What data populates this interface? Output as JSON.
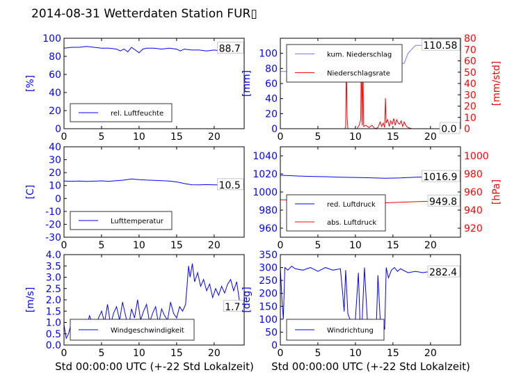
{
  "title": "2014-08-31 Wetterdaten Station FUR▯",
  "x_axis_label": "Std 00:00:00 UTC (+-22 Std Lokalzeit)",
  "colors": {
    "primary": "#0000ff",
    "primary_light": "#7777ff",
    "secondary": "#ff0000"
  },
  "chart_data": [
    {
      "type": "line",
      "ylabel": "[%]",
      "ylim": [
        0,
        100
      ],
      "yticks": [
        0,
        20,
        40,
        60,
        80,
        100
      ],
      "xlim": [
        0,
        24
      ],
      "xticks": [
        0,
        5,
        10,
        15,
        20
      ],
      "legend_loc": "lower-left",
      "last_value": "88.7",
      "series": [
        {
          "name": "rel. Luftfeuchte",
          "color": "#0000ff",
          "x": [
            0,
            1,
            2,
            3,
            4,
            5,
            6,
            7,
            7.5,
            8,
            8.5,
            9,
            9.5,
            10,
            10.5,
            11,
            12,
            13,
            14,
            15,
            15.5,
            16,
            17,
            18,
            19,
            20,
            21,
            22,
            23,
            24
          ],
          "y": [
            89,
            90,
            90,
            91,
            90,
            89,
            89,
            88,
            86,
            88,
            85,
            90,
            87,
            84,
            88,
            89,
            89,
            88,
            89,
            88,
            86,
            88,
            87,
            87,
            86,
            87,
            86,
            87,
            88,
            88.7
          ]
        }
      ]
    },
    {
      "type": "line",
      "ylabel": "[mm]",
      "ylabel_right": "[mm/std]",
      "ylim": [
        0,
        120
      ],
      "yticks": [
        0,
        20,
        40,
        60,
        80,
        100
      ],
      "ylim_right": [
        0,
        80
      ],
      "yticks_right": [
        0,
        10,
        20,
        30,
        40,
        50,
        60,
        70,
        80
      ],
      "xlim": [
        0,
        24
      ],
      "xticks": [
        0,
        5,
        10,
        15,
        20
      ],
      "legend_loc": "upper-left",
      "last_value": "110.58",
      "last_value_right": "0.0",
      "series": [
        {
          "name": "kum. Niederschlag",
          "color": "#7777ff",
          "axis": "left",
          "x": [
            0,
            8,
            8.8,
            9,
            10.8,
            11,
            13,
            14,
            15,
            16,
            16.5,
            17,
            18,
            24
          ],
          "y": [
            76,
            76,
            77,
            79,
            79,
            81,
            81,
            82,
            84,
            86,
            87,
            100,
            110.58,
            110.58
          ]
        },
        {
          "name": "Niederschlagsrate",
          "color": "#ff0000",
          "axis": "right",
          "x": [
            0,
            8.6,
            8.7,
            8.8,
            8.9,
            9.0,
            9.1,
            9.5,
            10.2,
            10.5,
            10.7,
            10.8,
            10.9,
            11.0,
            11.1,
            11.4,
            11.8,
            12.2,
            12.6,
            13.0,
            13.3,
            13.5,
            13.7,
            13.9,
            14.0,
            14.1,
            14.3,
            14.5,
            14.7,
            14.9,
            15.1,
            15.3,
            15.5,
            15.7,
            15.9,
            16.1,
            16.3,
            16.5,
            16.7,
            17.0,
            17.5,
            24
          ],
          "y": [
            0,
            0,
            2,
            59,
            10,
            0,
            0,
            0,
            0,
            3,
            8,
            65,
            3,
            56,
            2,
            3,
            1,
            3,
            0,
            1,
            6,
            2,
            5,
            1,
            27,
            5,
            8,
            2,
            7,
            4,
            9,
            3,
            8,
            5,
            4,
            7,
            2,
            6,
            3,
            1,
            0,
            0
          ]
        }
      ]
    },
    {
      "type": "line",
      "ylabel": "[C]",
      "ylim": [
        -30,
        40
      ],
      "yticks": [
        -30,
        -20,
        -10,
        0,
        10,
        20,
        30,
        40
      ],
      "xlim": [
        0,
        24
      ],
      "xticks": [
        0,
        5,
        10,
        15,
        20
      ],
      "legend_loc": "lower-left",
      "last_value": "10.5",
      "series": [
        {
          "name": "Lufttemperatur",
          "color": "#0000ff",
          "x": [
            0,
            1,
            2,
            3,
            4,
            5,
            6,
            7,
            8,
            9,
            10,
            11,
            12,
            13,
            14,
            15,
            16,
            17,
            18,
            19,
            20,
            21,
            22,
            23,
            24
          ],
          "y": [
            13.5,
            13.3,
            13.5,
            13.2,
            13.4,
            13.6,
            13.3,
            13.7,
            14.2,
            15.1,
            14.6,
            14.2,
            14.0,
            13.8,
            13.5,
            12.8,
            11.6,
            10.6,
            10.5,
            10.7,
            10.5,
            10.6,
            10.5,
            10.4,
            10.5
          ]
        }
      ]
    },
    {
      "type": "line",
      "ylabel_right": "[hPa]",
      "ylim": [
        950,
        1050
      ],
      "yticks": [
        960,
        980,
        1000,
        1020,
        1040
      ],
      "ylim_right": [
        910,
        1010
      ],
      "yticks_right": [
        920,
        940,
        960,
        980,
        1000
      ],
      "xlim": [
        0,
        24
      ],
      "xticks": [
        0,
        5,
        10,
        15,
        20
      ],
      "legend_loc": "lower-left",
      "last_value": "1016.9",
      "last_value_right": "949.8",
      "series": [
        {
          "name": "red. Luftdruck",
          "color": "#0000ff",
          "axis": "left",
          "x": [
            0,
            2,
            4,
            6,
            8,
            10,
            12,
            14,
            16,
            18,
            20,
            22,
            24
          ],
          "y": [
            1018.5,
            1017.8,
            1017.2,
            1016.9,
            1016.4,
            1016.1,
            1015.7,
            1015.2,
            1015.6,
            1016.4,
            1016.8,
            1016.9,
            1016.9
          ]
        },
        {
          "name": "abs. Luftdruck",
          "color": "#ff0000",
          "axis": "right",
          "x": [
            0,
            2,
            4,
            6,
            8,
            10,
            12,
            14,
            16,
            18,
            20,
            22,
            24
          ],
          "y": [
            951.5,
            950.8,
            950.2,
            949.8,
            949.4,
            949.0,
            948.6,
            948.1,
            948.6,
            949.3,
            949.7,
            949.8,
            949.8
          ]
        }
      ]
    },
    {
      "type": "line",
      "ylabel": "[m/s]",
      "ylim": [
        0,
        4.0
      ],
      "yticks": [
        0.0,
        0.5,
        1.0,
        1.5,
        2.0,
        2.5,
        3.0,
        3.5,
        4.0
      ],
      "ytick_labels": [
        "0.0",
        "0.5",
        "1.0",
        "1.5",
        "2.0",
        "2.5",
        "3.0",
        "3.5",
        "4.0"
      ],
      "xlim": [
        0,
        24
      ],
      "xticks": [
        0,
        5,
        10,
        15,
        20
      ],
      "legend_loc": "lower-center",
      "last_value": "1.7",
      "series": [
        {
          "name": "Windgeschwindigkeit",
          "color": "#0000ff",
          "x": [
            0,
            0.3,
            0.6,
            1,
            1.4,
            1.8,
            2.2,
            2.6,
            3,
            3.4,
            3.8,
            4.2,
            4.6,
            5,
            5.4,
            5.8,
            6.2,
            6.6,
            7,
            7.4,
            7.8,
            8.2,
            8.6,
            9,
            9.4,
            9.8,
            10.2,
            10.6,
            11,
            11.4,
            11.8,
            12.2,
            12.6,
            13,
            13.4,
            13.8,
            14.2,
            14.6,
            15,
            15.4,
            15.8,
            16.2,
            16.6,
            16.8,
            17.1,
            17.4,
            17.8,
            18.2,
            18.6,
            19,
            19.4,
            19.8,
            20.2,
            20.6,
            21,
            21.4,
            21.8,
            22.2,
            22.6,
            23,
            23.4,
            24
          ],
          "y": [
            0.9,
            0.3,
            0.5,
            1.0,
            0.7,
            0.9,
            0.6,
            1.1,
            0.8,
            1.3,
            0.9,
            0.7,
            1.2,
            1.5,
            1.0,
            1.8,
            0.9,
            1.4,
            1.7,
            1.1,
            1.9,
            1.3,
            0.8,
            1.6,
            1.2,
            2.0,
            1.1,
            1.5,
            1.8,
            1.0,
            1.4,
            1.7,
            0.9,
            1.6,
            1.3,
            1.1,
            1.9,
            1.4,
            1.2,
            1.7,
            1.5,
            1.8,
            3.5,
            3.0,
            3.6,
            2.8,
            3.2,
            2.6,
            2.9,
            2.4,
            2.7,
            2.1,
            2.5,
            2.2,
            2.6,
            2.3,
            2.7,
            2.9,
            2.4,
            2.8,
            1.9,
            1.7
          ]
        }
      ]
    },
    {
      "type": "line",
      "ylabel": "[deg]",
      "ylim": [
        0,
        350
      ],
      "yticks": [
        0,
        50,
        100,
        150,
        200,
        250,
        300,
        350
      ],
      "xlim": [
        0,
        24
      ],
      "xticks": [
        0,
        5,
        10,
        15,
        20
      ],
      "legend_loc": "lower-left",
      "last_value": "282.4",
      "series": [
        {
          "name": "Windrichtung",
          "color": "#0000ff",
          "x": [
            0,
            0.2,
            0.4,
            0.6,
            1,
            1.5,
            2,
            3,
            4,
            5,
            6,
            7,
            8,
            8.3,
            8.5,
            8.7,
            9,
            9.5,
            10,
            10.4,
            10.6,
            10.9,
            11.2,
            11.6,
            12,
            12.4,
            12.8,
            13,
            13.3,
            13.6,
            13.9,
            14.1,
            14.4,
            14.8,
            15.2,
            15.6,
            16,
            17,
            18,
            19,
            20,
            21,
            22,
            23,
            24
          ],
          "y": [
            300,
            180,
            100,
            300,
            290,
            305,
            295,
            290,
            300,
            285,
            300,
            290,
            295,
            200,
            130,
            290,
            120,
            85,
            100,
            280,
            100,
            95,
            300,
            90,
            100,
            95,
            85,
            270,
            100,
            90,
            60,
            300,
            260,
            290,
            300,
            285,
            295,
            280,
            285,
            280,
            285,
            282,
            280,
            283,
            282.4
          ]
        }
      ]
    }
  ]
}
